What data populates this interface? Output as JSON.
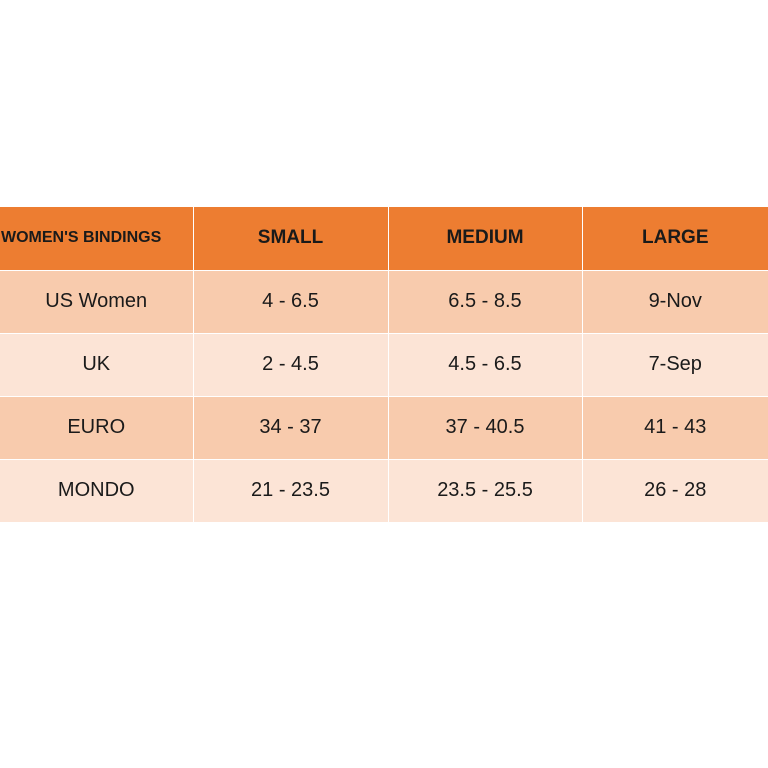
{
  "table": {
    "headers": [
      "WOMEN'S BINDINGS",
      "SMALL",
      "MEDIUM",
      "LARGE"
    ],
    "rows": [
      [
        "US Women",
        "4 - 6.5",
        "6.5 - 8.5",
        "9-Nov"
      ],
      [
        "UK",
        "2 - 4.5",
        "4.5 - 6.5",
        "7-Sep"
      ],
      [
        "EURO",
        "34 - 37",
        "37 - 40.5",
        "41 - 43"
      ],
      [
        "MONDO",
        "21 - 23.5",
        "23.5 - 25.5",
        "26 - 28"
      ]
    ],
    "colors": {
      "header_bg": "#ed7d31",
      "row_dark_bg": "#f8cbad",
      "row_light_bg": "#fce4d6",
      "divider": "#ffffff"
    }
  }
}
